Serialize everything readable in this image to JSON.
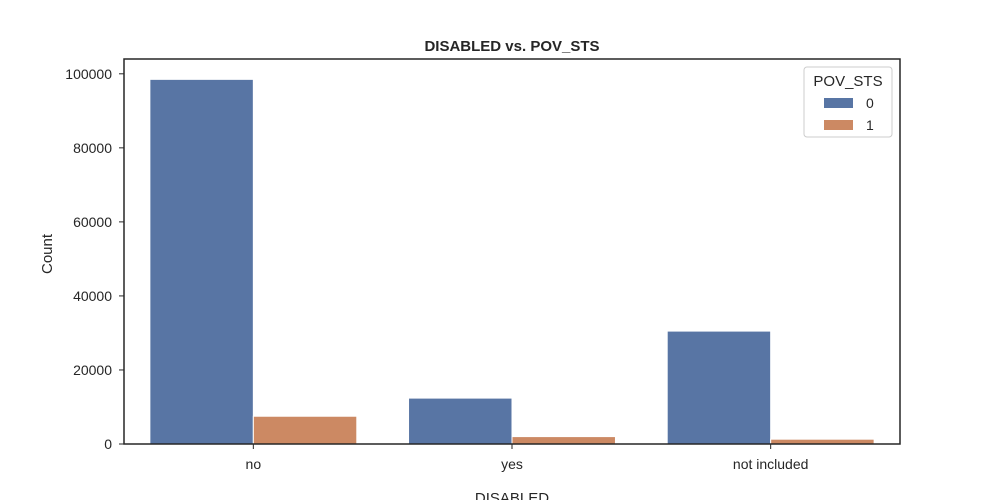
{
  "chart_data": {
    "type": "bar",
    "title": "DISABLED vs. POV_STS",
    "xlabel": "DISABLED",
    "ylabel": "Count",
    "categories": [
      "no",
      "yes",
      "not included"
    ],
    "series": [
      {
        "name": "0",
        "color": "#5875a4",
        "values": [
          98500,
          12400,
          30500
        ]
      },
      {
        "name": "1",
        "color": "#cc8963",
        "values": [
          7500,
          2000,
          1300
        ]
      }
    ],
    "ylim": [
      0,
      104000
    ],
    "yticks": [
      0,
      20000,
      40000,
      60000,
      80000,
      100000
    ],
    "ytick_labels": [
      "0",
      "20000",
      "40000",
      "60000",
      "80000",
      "100000"
    ],
    "legend": {
      "title": "POV_STS",
      "placement": "top-right"
    },
    "grid": false
  }
}
